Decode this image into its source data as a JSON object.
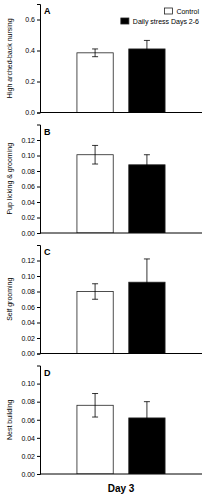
{
  "chart_data": [
    {
      "type": "bar",
      "title": "A",
      "ylabel": "High arched-back nursing",
      "categories": [
        null
      ],
      "series": [
        {
          "name": "Control",
          "color": "white",
          "values": [
            0.385
          ],
          "errors": [
            0.025
          ]
        },
        {
          "name": "Daily stress Days 2-6",
          "color": "black",
          "values": [
            0.41
          ],
          "errors": [
            0.055
          ]
        }
      ],
      "ylim": [
        0.0,
        0.7
      ],
      "yticks": [
        {
          "value": 0.0,
          "label": "0.0"
        },
        0.2,
        0.4,
        0.6
      ],
      "legend": "upper right",
      "tick_labels": "y",
      "grid": false
    },
    {
      "type": "bar",
      "title": "B",
      "ylabel": "Pup licking & grooming",
      "categories": [
        null
      ],
      "series": [
        {
          "color": "white",
          "values": [
            0.101
          ],
          "errors": [
            0.012
          ]
        },
        {
          "color": "black",
          "values": [
            0.088
          ],
          "errors": [
            0.013
          ]
        }
      ],
      "ylim": [
        0.0,
        0.14
      ],
      "yticks": [
        {
          "value": 0.0,
          "label": "0.00"
        },
        0.02,
        0.04,
        0.06,
        0.08,
        {
          "value": 0.1,
          "label": "0.10"
        },
        0.12
      ],
      "tick_labels": "y",
      "grid": false
    },
    {
      "type": "bar",
      "title": "C",
      "ylabel": "Self grooming",
      "categories": [
        null
      ],
      "series": [
        {
          "color": "white",
          "values": [
            0.08
          ],
          "errors": [
            0.01
          ]
        },
        {
          "color": "black",
          "values": [
            0.092
          ],
          "errors": [
            0.03
          ]
        }
      ],
      "ylim": [
        0.0,
        0.14
      ],
      "yticks": [
        {
          "value": 0.0,
          "label": "0.00"
        },
        0.02,
        0.04,
        0.06,
        0.08,
        {
          "value": 0.1,
          "label": "0.10"
        },
        0.12
      ],
      "tick_labels": "y",
      "grid": false
    },
    {
      "type": "bar",
      "title": "D",
      "ylabel": "Nest building",
      "xlabel": "Day 3",
      "categories": [
        null
      ],
      "series": [
        {
          "color": "white",
          "values": [
            0.076
          ],
          "errors": [
            0.013
          ]
        },
        {
          "color": "black",
          "values": [
            0.062
          ],
          "errors": [
            0.018
          ]
        }
      ],
      "ylim": [
        0.0,
        0.12
      ],
      "yticks": [
        {
          "value": 0.0,
          "label": "0.00"
        },
        0.02,
        0.04,
        0.06,
        0.08,
        {
          "value": 0.1,
          "label": "0.10"
        }
      ],
      "tick_labels": "y",
      "grid": false
    }
  ]
}
